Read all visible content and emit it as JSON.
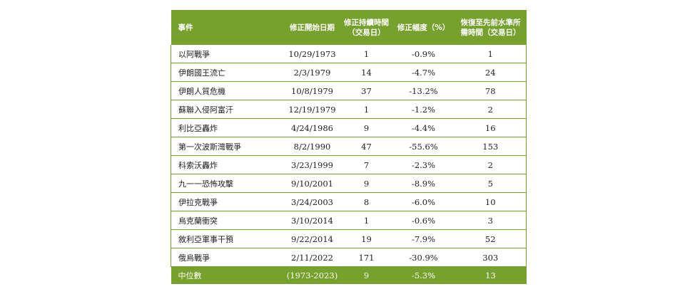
{
  "table": {
    "headers": [
      "事件",
      "修正開始日期",
      "修正持續時間\n（交易日）",
      "修正幅度（%）",
      "恢復至先前水準所\n需時間（交易日）"
    ],
    "rows": [
      [
        "以阿戰爭",
        "10/29/1973",
        "1",
        "-0.9%",
        "1"
      ],
      [
        "伊朗國王流亡",
        "2/3/1979",
        "14",
        "-4.7%",
        "24"
      ],
      [
        "伊朗人質危機",
        "10/8/1979",
        "37",
        "-13.2%",
        "78"
      ],
      [
        "蘇聯入侵阿富汗",
        "12/19/1979",
        "1",
        "-1.2%",
        "2"
      ],
      [
        "利比亞轟炸",
        "4/24/1986",
        "9",
        "-4.4%",
        "16"
      ],
      [
        "第一次波斯灣戰爭",
        "8/2/1990",
        "47",
        "-55.6%",
        "153"
      ],
      [
        "科索沃轟炸",
        "3/23/1999",
        "7",
        "-2.3%",
        "2"
      ],
      [
        "九一一恐怖攻擊",
        "9/10/2001",
        "9",
        "-8.9%",
        "5"
      ],
      [
        "伊拉克戰爭",
        "3/24/2003",
        "8",
        "-6.0%",
        "10"
      ],
      [
        "烏克蘭衝突",
        "3/10/2014",
        "1",
        "-0.6%",
        "3"
      ],
      [
        "敘利亞軍事干預",
        "9/22/2014",
        "19",
        "-7.9%",
        "52"
      ],
      [
        "俄烏戰爭",
        "2/11/2022",
        "171",
        "-30.9%",
        "303"
      ]
    ],
    "footer": [
      "中位數",
      "(1973-2023)",
      "9",
      "-5.3%",
      "13"
    ]
  },
  "colors": {
    "accent": "#76a12d",
    "text": "#222222",
    "header_text": "#ffffff"
  }
}
